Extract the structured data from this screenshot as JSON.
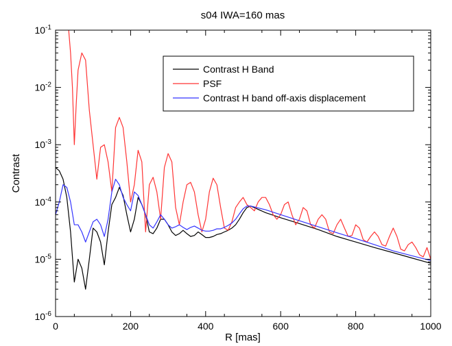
{
  "chart_data": {
    "type": "line",
    "title": "s04 IWA=160 mas",
    "xlabel": "R [mas]",
    "ylabel": "Contrast",
    "xlim": [
      0,
      1000
    ],
    "ylim": [
      1e-06,
      0.1
    ],
    "yscale": "log",
    "grid": false,
    "legend_position": "top-right",
    "x_ticks": [
      0,
      200,
      400,
      600,
      800,
      1000
    ],
    "x_tick_labels": [
      "0",
      "200",
      "400",
      "600",
      "800",
      "1000"
    ],
    "y_ticks": [
      1e-06,
      1e-05,
      0.0001,
      0.001,
      0.01,
      0.1
    ],
    "y_tick_labels": [
      {
        "base": "10",
        "exp": "-6"
      },
      {
        "base": "10",
        "exp": "-5"
      },
      {
        "base": "10",
        "exp": "-4"
      },
      {
        "base": "10",
        "exp": "-3"
      },
      {
        "base": "10",
        "exp": "-2"
      },
      {
        "base": "10",
        "exp": "-1"
      }
    ],
    "series": [
      {
        "name": "Contrast H Band",
        "color": "#000000",
        "points": [
          [
            0,
            0.0004
          ],
          [
            10,
            0.00035
          ],
          [
            20,
            0.00025
          ],
          [
            30,
            0.00012
          ],
          [
            40,
            3e-05
          ],
          [
            50,
            4e-06
          ],
          [
            60,
            1e-05
          ],
          [
            70,
            7e-06
          ],
          [
            80,
            3e-06
          ],
          [
            90,
            1e-05
          ],
          [
            100,
            3.5e-05
          ],
          [
            110,
            3e-05
          ],
          [
            120,
            2e-05
          ],
          [
            130,
            8e-06
          ],
          [
            140,
            3e-05
          ],
          [
            150,
            9e-05
          ],
          [
            160,
            0.00012
          ],
          [
            170,
            0.00018
          ],
          [
            180,
            0.00013
          ],
          [
            190,
            6e-05
          ],
          [
            200,
            3e-05
          ],
          [
            210,
            5e-05
          ],
          [
            220,
            0.00012
          ],
          [
            230,
            9e-05
          ],
          [
            240,
            6e-05
          ],
          [
            250,
            3e-05
          ],
          [
            260,
            2.8e-05
          ],
          [
            270,
            3.5e-05
          ],
          [
            280,
            5e-05
          ],
          [
            290,
            5e-05
          ],
          [
            300,
            4e-05
          ],
          [
            310,
            3e-05
          ],
          [
            320,
            2.6e-05
          ],
          [
            330,
            2.8e-05
          ],
          [
            340,
            3.2e-05
          ],
          [
            350,
            2.8e-05
          ],
          [
            360,
            2.5e-05
          ],
          [
            370,
            2.6e-05
          ],
          [
            380,
            3e-05
          ],
          [
            390,
            2.7e-05
          ],
          [
            400,
            2.4e-05
          ],
          [
            410,
            2.4e-05
          ],
          [
            420,
            2.5e-05
          ],
          [
            430,
            2.7e-05
          ],
          [
            440,
            2.8e-05
          ],
          [
            450,
            3e-05
          ],
          [
            460,
            3.2e-05
          ],
          [
            470,
            3.5e-05
          ],
          [
            480,
            4e-05
          ],
          [
            490,
            5e-05
          ],
          [
            500,
            6.5e-05
          ],
          [
            510,
            8e-05
          ],
          [
            520,
            8.5e-05
          ],
          [
            560,
            6.5e-05
          ],
          [
            600,
            5.3e-05
          ],
          [
            650,
            4.2e-05
          ],
          [
            700,
            3.3e-05
          ],
          [
            750,
            2.5e-05
          ],
          [
            800,
            2e-05
          ],
          [
            850,
            1.6e-05
          ],
          [
            900,
            1.3e-05
          ],
          [
            950,
            1.05e-05
          ],
          [
            1000,
            8.5e-06
          ]
        ]
      },
      {
        "name": "PSF",
        "color": "#ff3333",
        "points": [
          [
            35,
            0.1
          ],
          [
            40,
            0.04
          ],
          [
            45,
            0.01
          ],
          [
            50,
            0.001
          ],
          [
            55,
            0.005
          ],
          [
            60,
            0.02
          ],
          [
            70,
            0.04
          ],
          [
            80,
            0.03
          ],
          [
            90,
            0.004
          ],
          [
            100,
            0.001
          ],
          [
            110,
            0.00025
          ],
          [
            120,
            0.0009
          ],
          [
            130,
            0.001
          ],
          [
            140,
            0.0005
          ],
          [
            150,
            0.00015
          ],
          [
            160,
            0.002
          ],
          [
            170,
            0.003
          ],
          [
            180,
            0.002
          ],
          [
            190,
            0.0005
          ],
          [
            200,
            0.0001
          ],
          [
            210,
            0.0002
          ],
          [
            220,
            0.0008
          ],
          [
            230,
            0.0005
          ],
          [
            240,
            3e-05
          ],
          [
            250,
            0.0002
          ],
          [
            260,
            0.00027
          ],
          [
            270,
            0.00015
          ],
          [
            280,
            5e-05
          ],
          [
            290,
            0.0004
          ],
          [
            300,
            0.0007
          ],
          [
            310,
            0.0005
          ],
          [
            320,
            8e-05
          ],
          [
            330,
            4e-05
          ],
          [
            340,
            0.0001
          ],
          [
            350,
            0.0002
          ],
          [
            360,
            0.00022
          ],
          [
            370,
            0.00015
          ],
          [
            380,
            6e-05
          ],
          [
            390,
            3e-05
          ],
          [
            400,
            5e-05
          ],
          [
            410,
            0.00015
          ],
          [
            420,
            0.00026
          ],
          [
            430,
            0.0002
          ],
          [
            440,
            8e-05
          ],
          [
            450,
            3.5e-05
          ],
          [
            460,
            3.2e-05
          ],
          [
            470,
            4.5e-05
          ],
          [
            480,
            8e-05
          ],
          [
            490,
            0.0001
          ],
          [
            500,
            0.00012
          ],
          [
            510,
            9e-05
          ],
          [
            520,
            8e-05
          ],
          [
            530,
            7e-05
          ],
          [
            540,
            0.0001
          ],
          [
            550,
            0.00012
          ],
          [
            560,
            0.00012
          ],
          [
            570,
            9e-05
          ],
          [
            580,
            6e-05
          ],
          [
            590,
            5e-05
          ],
          [
            600,
            6e-05
          ],
          [
            610,
            9e-05
          ],
          [
            620,
            0.0001
          ],
          [
            630,
            6e-05
          ],
          [
            640,
            4e-05
          ],
          [
            650,
            5e-05
          ],
          [
            660,
            8e-05
          ],
          [
            670,
            7e-05
          ],
          [
            680,
            4e-05
          ],
          [
            690,
            3.5e-05
          ],
          [
            700,
            5e-05
          ],
          [
            710,
            6e-05
          ],
          [
            720,
            5e-05
          ],
          [
            730,
            3e-05
          ],
          [
            740,
            2.8e-05
          ],
          [
            750,
            4e-05
          ],
          [
            760,
            5e-05
          ],
          [
            770,
            3.5e-05
          ],
          [
            780,
            2.5e-05
          ],
          [
            790,
            2.6e-05
          ],
          [
            800,
            4e-05
          ],
          [
            810,
            3.5e-05
          ],
          [
            820,
            2.2e-05
          ],
          [
            830,
            2e-05
          ],
          [
            840,
            2.5e-05
          ],
          [
            850,
            3e-05
          ],
          [
            860,
            2.5e-05
          ],
          [
            870,
            1.8e-05
          ],
          [
            880,
            1.7e-05
          ],
          [
            890,
            2.5e-05
          ],
          [
            900,
            3.5e-05
          ],
          [
            910,
            2.5e-05
          ],
          [
            920,
            1.5e-05
          ],
          [
            930,
            1.4e-05
          ],
          [
            940,
            1.8e-05
          ],
          [
            950,
            2e-05
          ],
          [
            960,
            1.6e-05
          ],
          [
            970,
            1.2e-05
          ],
          [
            980,
            1.1e-05
          ],
          [
            990,
            1.6e-05
          ],
          [
            1000,
            1e-05
          ]
        ]
      },
      {
        "name": "Contrast H band off-axis displacement",
        "color": "#3333ff",
        "points": [
          [
            0,
            6e-05
          ],
          [
            10,
            0.0001
          ],
          [
            20,
            0.0002
          ],
          [
            30,
            0.00018
          ],
          [
            40,
            0.0001
          ],
          [
            50,
            4e-05
          ],
          [
            60,
            4e-05
          ],
          [
            70,
            3e-05
          ],
          [
            80,
            2e-05
          ],
          [
            90,
            3e-05
          ],
          [
            100,
            4.5e-05
          ],
          [
            110,
            5e-05
          ],
          [
            120,
            4e-05
          ],
          [
            130,
            2.5e-05
          ],
          [
            140,
            5e-05
          ],
          [
            150,
            0.00015
          ],
          [
            160,
            0.00025
          ],
          [
            170,
            0.0002
          ],
          [
            180,
            0.00012
          ],
          [
            190,
            9e-05
          ],
          [
            200,
            7e-05
          ],
          [
            210,
            0.00015
          ],
          [
            220,
            0.00013
          ],
          [
            230,
            9e-05
          ],
          [
            240,
            6e-05
          ],
          [
            250,
            4e-05
          ],
          [
            260,
            3.5e-05
          ],
          [
            270,
            4.5e-05
          ],
          [
            280,
            6e-05
          ],
          [
            290,
            5e-05
          ],
          [
            300,
            4e-05
          ],
          [
            310,
            3.5e-05
          ],
          [
            320,
            3.7e-05
          ],
          [
            330,
            4e-05
          ],
          [
            340,
            3.6e-05
          ],
          [
            350,
            3.3e-05
          ],
          [
            360,
            3.6e-05
          ],
          [
            370,
            3.8e-05
          ],
          [
            380,
            3.5e-05
          ],
          [
            390,
            3.2e-05
          ],
          [
            400,
            3.1e-05
          ],
          [
            410,
            3.1e-05
          ],
          [
            420,
            3.2e-05
          ],
          [
            430,
            3.4e-05
          ],
          [
            440,
            3.4e-05
          ],
          [
            450,
            3.6e-05
          ],
          [
            460,
            3.9e-05
          ],
          [
            470,
            4.3e-05
          ],
          [
            480,
            5e-05
          ],
          [
            490,
            6.2e-05
          ],
          [
            500,
            7.6e-05
          ],
          [
            510,
            8.5e-05
          ],
          [
            520,
            8.5e-05
          ],
          [
            560,
            7.3e-05
          ],
          [
            600,
            6e-05
          ],
          [
            650,
            4.7e-05
          ],
          [
            700,
            3.7e-05
          ],
          [
            750,
            2.9e-05
          ],
          [
            800,
            2.3e-05
          ],
          [
            850,
            1.8e-05
          ],
          [
            900,
            1.4e-05
          ],
          [
            950,
            1.15e-05
          ],
          [
            1000,
            9.5e-06
          ]
        ]
      }
    ]
  }
}
